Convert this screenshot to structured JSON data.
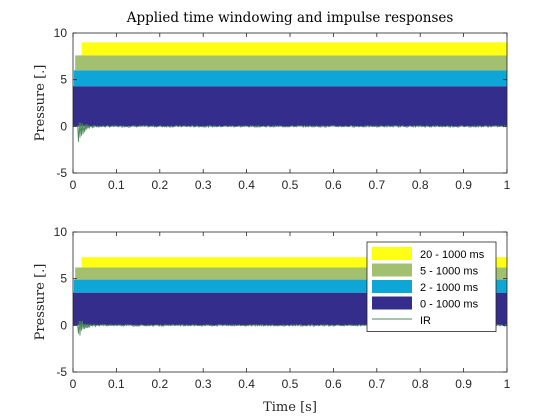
{
  "chart_data": [
    {
      "type": "area",
      "title": "Applied time windowing and impulse responses",
      "xlabel": "",
      "ylabel": "Pressure [.]",
      "xlim": [
        0,
        1
      ],
      "ylim": [
        -5,
        10
      ],
      "xticks": [
        "0",
        "0.1",
        "0.2",
        "0.3",
        "0.4",
        "0.5",
        "0.6",
        "0.7",
        "0.8",
        "0.9",
        "1"
      ],
      "yticks": [
        "-5",
        "0",
        "5",
        "10"
      ],
      "grid": false,
      "windows": [
        {
          "start": 0.0,
          "end": 1.0,
          "bottom": 0,
          "top": 4.3,
          "color": "#342d8c"
        },
        {
          "start": 0.002,
          "end": 1.0,
          "bottom": 4.3,
          "top": 6.0,
          "color": "#0ea5d7"
        },
        {
          "start": 0.005,
          "end": 1.0,
          "bottom": 6.0,
          "top": 7.6,
          "color": "#a3c070"
        },
        {
          "start": 0.02,
          "end": 1.0,
          "bottom": 7.6,
          "top": 9.0,
          "color": "#ffff14"
        }
      ],
      "ir": {
        "color": "#4b8a5a",
        "onset": 0.012,
        "peak_low": -2.3,
        "peak_high": 0.9
      }
    },
    {
      "type": "area",
      "title": "",
      "xlabel": "Time [s]",
      "ylabel": "Pressure [.]",
      "xlim": [
        0,
        1
      ],
      "ylim": [
        -5,
        10
      ],
      "xticks": [
        "0",
        "0.1",
        "0.2",
        "0.3",
        "0.4",
        "0.5",
        "0.6",
        "0.7",
        "0.8",
        "0.9",
        "1"
      ],
      "yticks": [
        "-5",
        "0",
        "5",
        "10"
      ],
      "grid": false,
      "legend_position": "top-right",
      "windows": [
        {
          "start": 0.0,
          "end": 1.0,
          "bottom": 0,
          "top": 3.5,
          "color": "#342d8c"
        },
        {
          "start": 0.002,
          "end": 1.0,
          "bottom": 3.5,
          "top": 4.9,
          "color": "#0ea5d7"
        },
        {
          "start": 0.005,
          "end": 1.0,
          "bottom": 4.9,
          "top": 6.2,
          "color": "#a3c070"
        },
        {
          "start": 0.02,
          "end": 1.0,
          "bottom": 6.2,
          "top": 7.3,
          "color": "#ffff14"
        }
      ],
      "ir": {
        "color": "#4b8a5a",
        "onset": 0.012,
        "peak_low": -1.7,
        "peak_high": 0.9
      },
      "legend": [
        {
          "label": "20 - 1000 ms",
          "color": "#ffff14",
          "kind": "patch"
        },
        {
          "label": "5 - 1000 ms",
          "color": "#a3c070",
          "kind": "patch"
        },
        {
          "label": "2 - 1000 ms",
          "color": "#0ea5d7",
          "kind": "patch"
        },
        {
          "label": "0 - 1000 ms",
          "color": "#342d8c",
          "kind": "patch"
        },
        {
          "label": "IR",
          "color": "#4b8a5a",
          "kind": "line"
        }
      ]
    }
  ]
}
